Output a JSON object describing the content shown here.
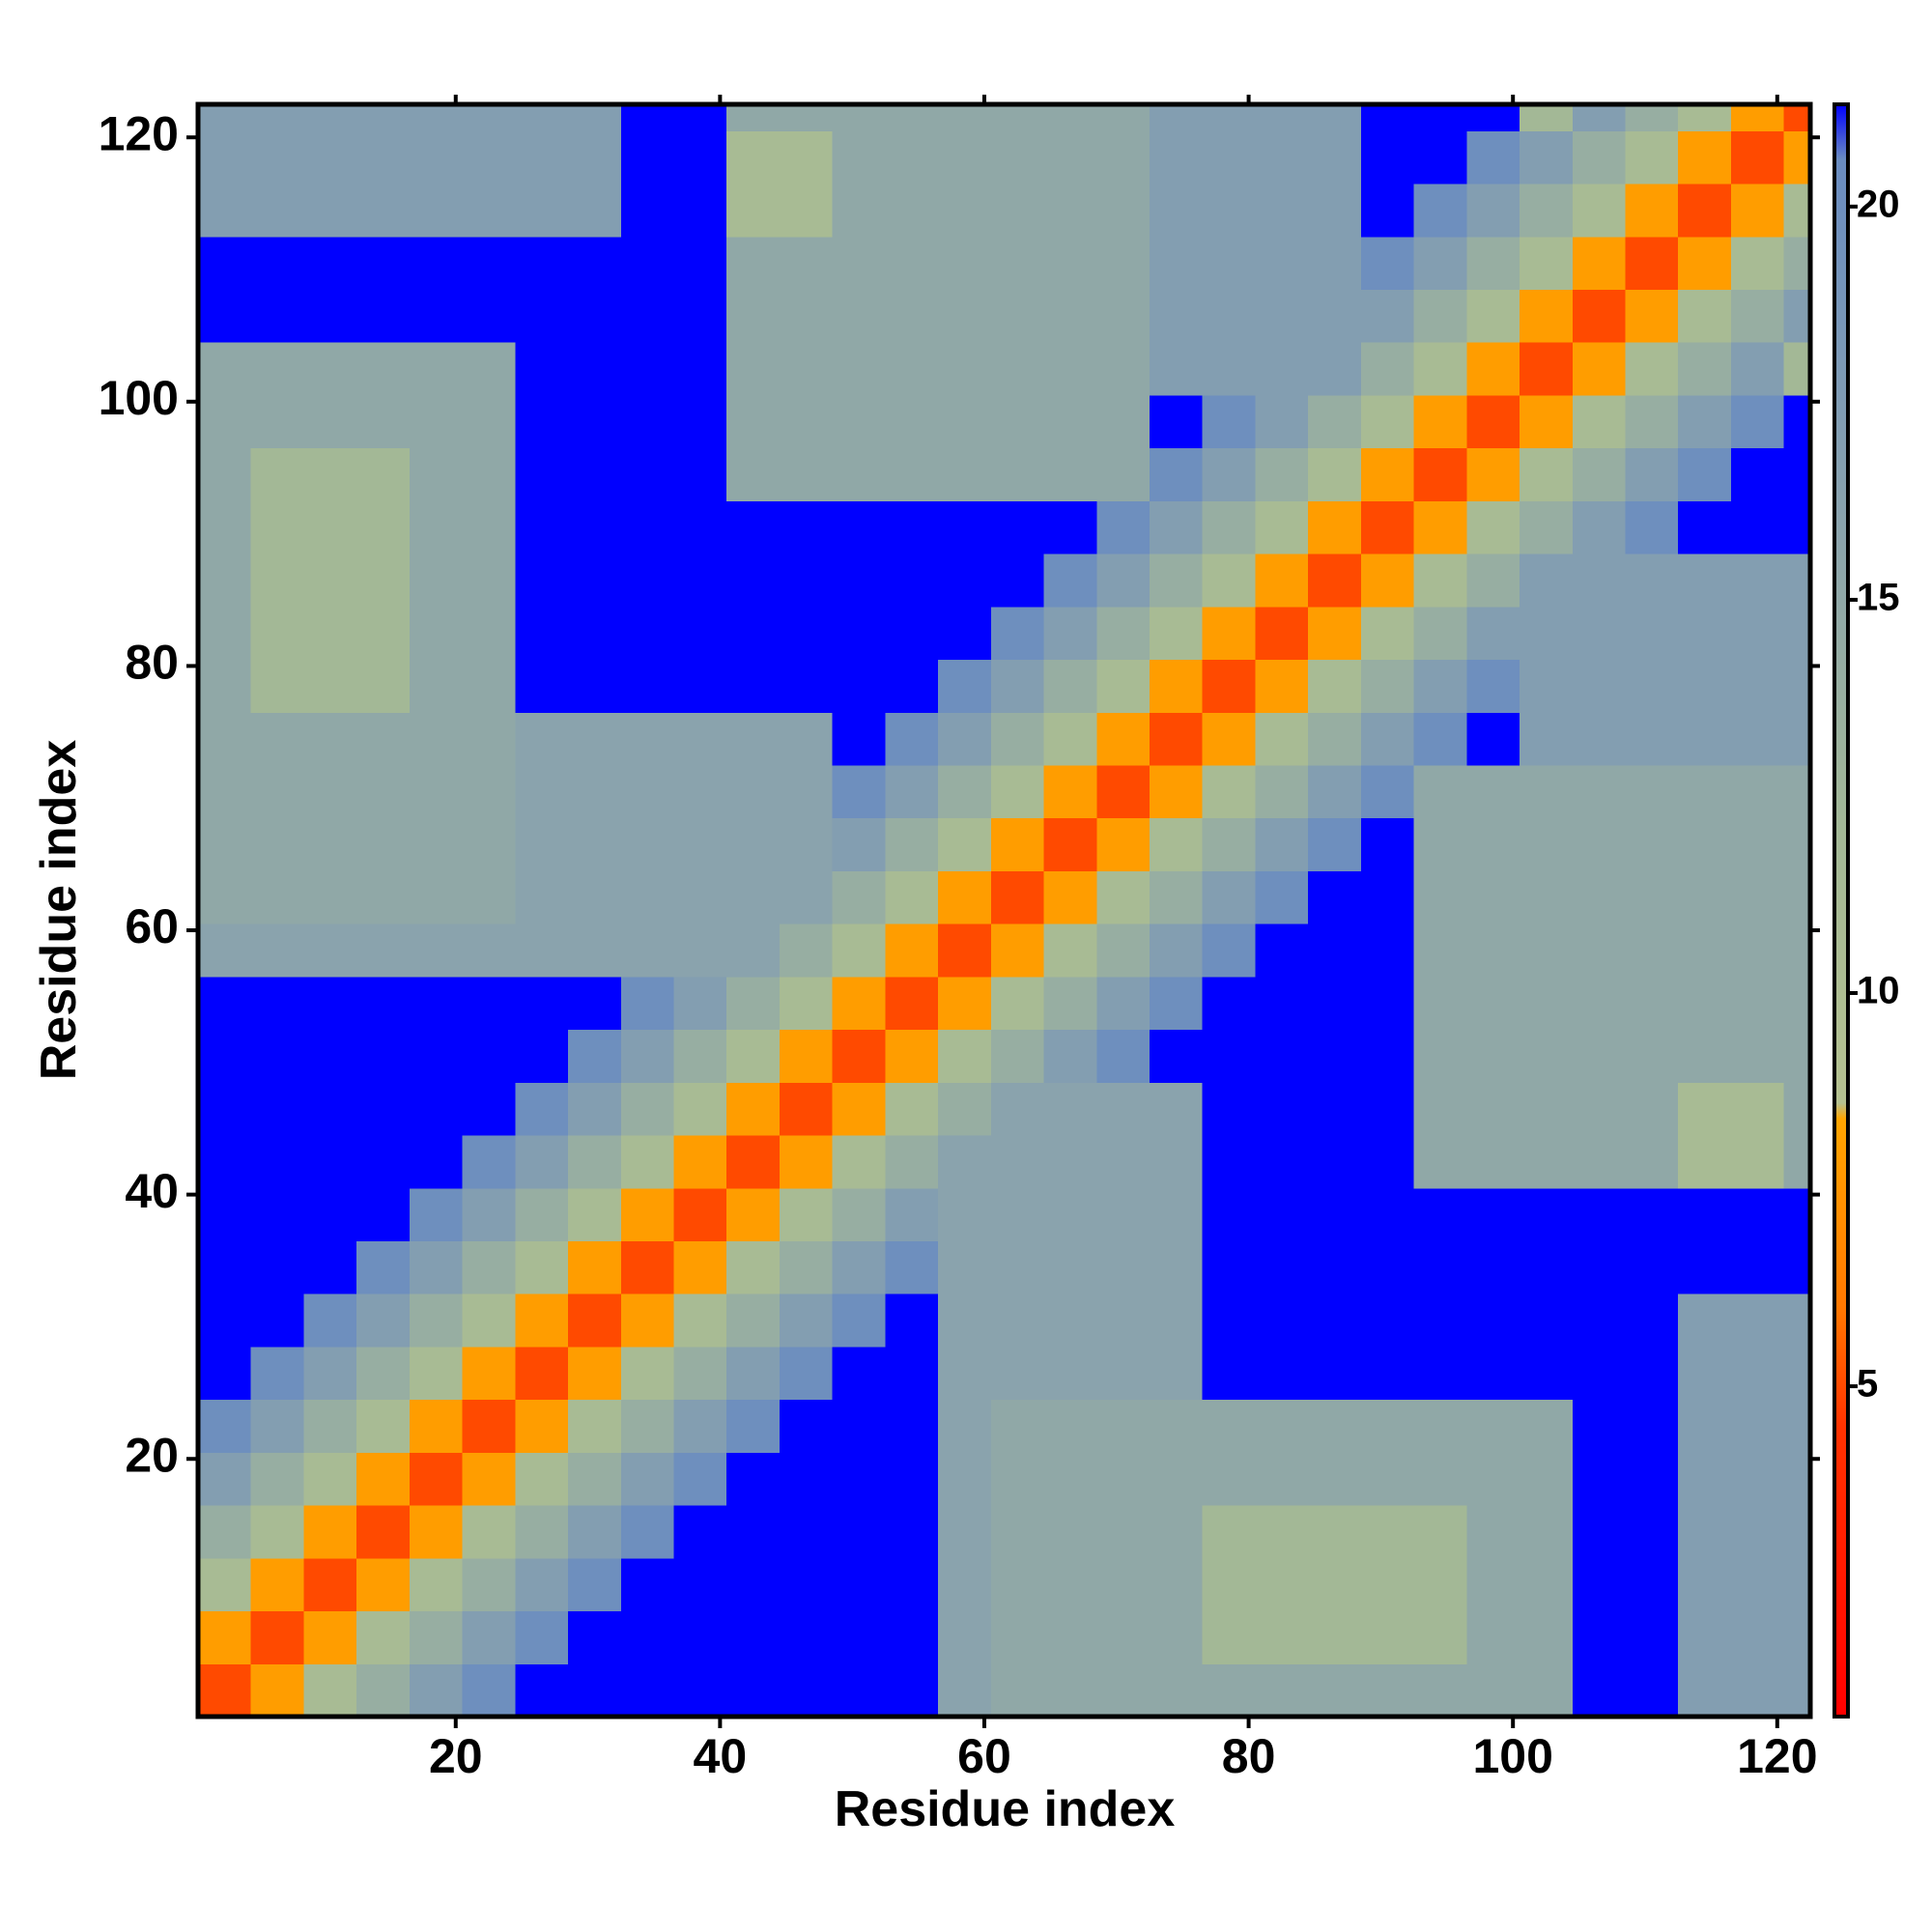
{
  "chart_data": {
    "type": "heatmap",
    "xlabel": "Residue index",
    "ylabel": "Residue index",
    "xlim": [
      0.5,
      122.5
    ],
    "ylim": [
      0.5,
      122.5
    ],
    "xticks": [
      20,
      40,
      60,
      80,
      100,
      120
    ],
    "yticks": [
      20,
      40,
      60,
      80,
      100,
      120
    ],
    "xbins": [
      0.5,
      4.5,
      8.5,
      12.5,
      16.5,
      20.5,
      24.5,
      28.5,
      32.5,
      36.5,
      40.5,
      44.5,
      48.5,
      52.5,
      56.5,
      60.5,
      64.5,
      68.5,
      72.5,
      76.5,
      80.5,
      84.5,
      88.5,
      92.5,
      96.5,
      100.5,
      104.5,
      108.5,
      112.5,
      116.5,
      120.5,
      122.5
    ],
    "ybins": [
      0.5,
      4.5,
      8.5,
      12.5,
      16.5,
      20.5,
      24.5,
      28.5,
      32.5,
      36.5,
      40.5,
      44.5,
      48.5,
      52.5,
      56.5,
      60.5,
      64.5,
      68.5,
      72.5,
      76.5,
      80.5,
      84.5,
      88.5,
      92.5,
      96.5,
      100.5,
      104.5,
      108.5,
      112.5,
      116.5,
      120.5,
      122.5
    ],
    "values": [
      [
        5,
        8,
        11,
        14,
        17,
        20,
        25,
        25,
        25,
        25,
        25,
        25,
        25,
        25,
        16,
        15,
        15,
        15,
        15,
        15,
        15,
        15,
        15,
        15,
        15,
        15,
        25,
        25,
        17,
        17,
        17
      ],
      [
        8,
        5,
        8,
        11,
        14,
        17,
        20,
        25,
        25,
        25,
        25,
        25,
        25,
        25,
        16,
        15,
        15,
        15,
        15,
        12,
        12,
        12,
        12,
        12,
        15,
        15,
        25,
        25,
        17,
        17,
        17
      ],
      [
        11,
        8,
        5,
        8,
        11,
        14,
        17,
        20,
        25,
        25,
        25,
        25,
        25,
        25,
        16,
        15,
        15,
        15,
        15,
        12,
        12,
        12,
        12,
        12,
        15,
        15,
        25,
        25,
        17,
        17,
        17
      ],
      [
        14,
        11,
        8,
        5,
        8,
        11,
        14,
        17,
        20,
        25,
        25,
        25,
        25,
        25,
        16,
        15,
        15,
        15,
        15,
        12,
        12,
        12,
        12,
        12,
        15,
        15,
        25,
        25,
        17,
        17,
        17
      ],
      [
        17,
        14,
        11,
        8,
        5,
        8,
        11,
        14,
        17,
        20,
        25,
        25,
        25,
        25,
        16,
        15,
        15,
        15,
        15,
        15,
        15,
        15,
        15,
        15,
        15,
        15,
        25,
        25,
        17,
        17,
        17
      ],
      [
        20,
        17,
        14,
        11,
        8,
        5,
        8,
        11,
        14,
        17,
        20,
        25,
        25,
        25,
        16,
        15,
        15,
        15,
        15,
        15,
        15,
        15,
        15,
        15,
        15,
        15,
        25,
        25,
        17,
        17,
        17
      ],
      [
        25,
        20,
        17,
        14,
        11,
        8,
        5,
        8,
        11,
        14,
        17,
        20,
        25,
        25,
        16,
        16,
        16,
        16,
        16,
        25,
        25,
        25,
        25,
        25,
        25,
        25,
        25,
        25,
        17,
        17,
        17
      ],
      [
        25,
        25,
        20,
        17,
        14,
        11,
        8,
        5,
        8,
        11,
        14,
        17,
        20,
        25,
        16,
        16,
        16,
        16,
        16,
        25,
        25,
        25,
        25,
        25,
        25,
        25,
        25,
        25,
        17,
        17,
        17
      ],
      [
        25,
        25,
        25,
        20,
        17,
        14,
        11,
        8,
        5,
        8,
        11,
        14,
        17,
        20,
        16,
        16,
        16,
        16,
        16,
        25,
        25,
        25,
        25,
        25,
        25,
        25,
        25,
        25,
        25,
        25,
        25
      ],
      [
        25,
        25,
        25,
        25,
        20,
        17,
        14,
        11,
        8,
        5,
        8,
        11,
        14,
        17,
        16,
        16,
        16,
        16,
        16,
        25,
        25,
        25,
        25,
        25,
        25,
        25,
        25,
        25,
        25,
        25,
        25
      ],
      [
        25,
        25,
        25,
        25,
        25,
        20,
        17,
        14,
        11,
        8,
        5,
        8,
        11,
        14,
        16,
        16,
        16,
        16,
        16,
        25,
        25,
        25,
        25,
        15,
        15,
        15,
        15,
        15,
        11,
        11,
        15
      ],
      [
        25,
        25,
        25,
        25,
        25,
        25,
        20,
        17,
        14,
        11,
        8,
        5,
        8,
        11,
        14,
        16,
        16,
        16,
        16,
        25,
        25,
        25,
        25,
        15,
        15,
        15,
        15,
        15,
        11,
        11,
        15
      ],
      [
        25,
        25,
        25,
        25,
        25,
        25,
        25,
        20,
        17,
        14,
        11,
        8,
        5,
        8,
        11,
        14,
        17,
        20,
        25,
        25,
        25,
        25,
        25,
        15,
        15,
        15,
        15,
        15,
        15,
        15,
        15
      ],
      [
        25,
        25,
        25,
        25,
        25,
        25,
        25,
        25,
        20,
        17,
        14,
        11,
        8,
        5,
        8,
        11,
        14,
        17,
        20,
        25,
        25,
        25,
        25,
        15,
        15,
        15,
        15,
        15,
        15,
        15,
        15
      ],
      [
        16,
        16,
        16,
        16,
        16,
        16,
        16,
        16,
        16,
        16,
        16,
        14,
        11,
        8,
        5,
        8,
        11,
        14,
        17,
        20,
        25,
        25,
        25,
        15,
        15,
        15,
        15,
        15,
        15,
        15,
        15
      ],
      [
        15,
        15,
        15,
        15,
        15,
        15,
        16,
        16,
        16,
        16,
        16,
        16,
        14,
        11,
        8,
        5,
        8,
        11,
        14,
        17,
        20,
        25,
        25,
        15,
        15,
        15,
        15,
        15,
        15,
        15,
        15
      ],
      [
        15,
        15,
        15,
        15,
        15,
        15,
        16,
        16,
        16,
        16,
        16,
        16,
        17,
        14,
        11,
        8,
        5,
        8,
        11,
        14,
        17,
        20,
        25,
        15,
        15,
        15,
        15,
        15,
        15,
        15,
        15
      ],
      [
        15,
        15,
        15,
        15,
        15,
        15,
        16,
        16,
        16,
        16,
        16,
        16,
        20,
        17,
        14,
        11,
        8,
        5,
        8,
        11,
        14,
        17,
        20,
        15,
        15,
        15,
        15,
        15,
        15,
        15,
        15
      ],
      [
        15,
        15,
        15,
        15,
        15,
        15,
        16,
        16,
        16,
        16,
        16,
        16,
        25,
        20,
        17,
        14,
        11,
        8,
        5,
        8,
        11,
        14,
        17,
        20,
        25,
        17,
        17,
        17,
        17,
        17,
        17
      ],
      [
        15,
        12,
        12,
        12,
        15,
        15,
        25,
        25,
        25,
        25,
        25,
        25,
        25,
        25,
        20,
        17,
        14,
        11,
        8,
        5,
        8,
        11,
        14,
        17,
        20,
        17,
        17,
        17,
        17,
        17,
        17
      ],
      [
        15,
        12,
        12,
        12,
        15,
        15,
        25,
        25,
        25,
        25,
        25,
        25,
        25,
        25,
        25,
        20,
        17,
        14,
        11,
        8,
        5,
        8,
        11,
        14,
        17,
        17,
        17,
        17,
        17,
        17,
        17
      ],
      [
        15,
        12,
        12,
        12,
        15,
        15,
        25,
        25,
        25,
        25,
        25,
        25,
        25,
        25,
        25,
        25,
        20,
        17,
        14,
        11,
        8,
        5,
        8,
        11,
        14,
        17,
        17,
        17,
        17,
        17,
        17
      ],
      [
        15,
        12,
        12,
        12,
        15,
        15,
        25,
        25,
        25,
        25,
        25,
        25,
        25,
        25,
        25,
        25,
        25,
        20,
        17,
        14,
        11,
        8,
        5,
        8,
        11,
        14,
        17,
        20,
        25,
        25,
        25
      ],
      [
        15,
        12,
        12,
        12,
        15,
        15,
        25,
        25,
        25,
        25,
        15,
        15,
        15,
        15,
        15,
        15,
        15,
        15,
        20,
        17,
        14,
        11,
        8,
        5,
        8,
        11,
        14,
        17,
        20,
        25,
        25
      ],
      [
        15,
        15,
        15,
        15,
        15,
        15,
        25,
        25,
        25,
        25,
        15,
        15,
        15,
        15,
        15,
        15,
        15,
        15,
        25,
        20,
        17,
        14,
        11,
        8,
        5,
        8,
        11,
        14,
        17,
        20,
        25
      ],
      [
        15,
        15,
        15,
        15,
        15,
        15,
        25,
        25,
        25,
        25,
        15,
        15,
        15,
        15,
        15,
        15,
        15,
        15,
        17,
        17,
        17,
        17,
        14,
        11,
        8,
        5,
        8,
        11,
        14,
        17,
        12
      ],
      [
        25,
        25,
        25,
        25,
        25,
        25,
        25,
        25,
        25,
        25,
        15,
        15,
        15,
        15,
        15,
        15,
        15,
        15,
        17,
        17,
        17,
        17,
        17,
        14,
        11,
        8,
        5,
        8,
        11,
        14,
        17
      ],
      [
        25,
        25,
        25,
        25,
        25,
        25,
        25,
        25,
        25,
        25,
        15,
        15,
        15,
        15,
        15,
        15,
        15,
        15,
        17,
        17,
        17,
        17,
        20,
        17,
        14,
        11,
        8,
        5,
        8,
        11,
        14
      ],
      [
        17,
        17,
        17,
        17,
        17,
        17,
        17,
        17,
        25,
        25,
        11,
        11,
        15,
        15,
        15,
        15,
        15,
        15,
        17,
        17,
        17,
        17,
        25,
        20,
        17,
        14,
        11,
        8,
        5,
        8,
        11
      ],
      [
        17,
        17,
        17,
        17,
        17,
        17,
        17,
        17,
        25,
        25,
        11,
        11,
        15,
        15,
        15,
        15,
        15,
        15,
        17,
        17,
        17,
        17,
        25,
        25,
        20,
        17,
        14,
        11,
        8,
        5,
        8
      ],
      [
        17,
        17,
        17,
        17,
        17,
        17,
        17,
        17,
        25,
        25,
        15,
        15,
        15,
        15,
        15,
        15,
        15,
        15,
        17,
        17,
        17,
        17,
        25,
        25,
        25,
        12,
        17,
        14,
        11,
        8,
        5
      ]
    ],
    "colorbar": {
      "lim": [
        0.8,
        21.3
      ],
      "ticks": [
        5,
        10,
        15,
        20
      ],
      "stops": [
        [
          0.8,
          "#ff0000"
        ],
        [
          4.5,
          "#ff3300"
        ],
        [
          6,
          "#ff7700"
        ],
        [
          8.4,
          "#ffa500"
        ],
        [
          8.6,
          "#b5c190"
        ],
        [
          12,
          "#a3b896"
        ],
        [
          16,
          "#8aa3ad"
        ],
        [
          20.6,
          "#6a8cc0"
        ],
        [
          21.3,
          "#0000ff"
        ]
      ],
      "over_color": "#0000ff"
    }
  }
}
